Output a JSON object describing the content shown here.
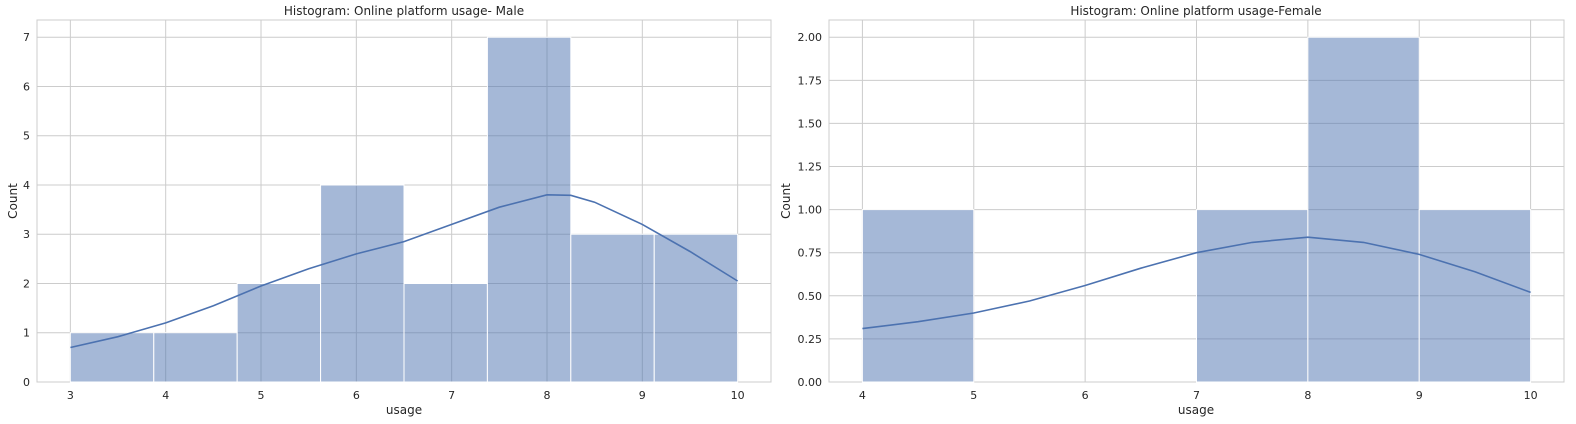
{
  "chart_data": [
    {
      "type": "bar",
      "title": "Histogram: Online platform usage- Male",
      "xlabel": "usage",
      "ylabel": "Count",
      "xlim": [
        2.65,
        10.35
      ],
      "ylim": [
        0,
        7.35
      ],
      "xticks": [
        3,
        4,
        5,
        6,
        7,
        8,
        9,
        10
      ],
      "yticks": [
        0,
        1,
        2,
        3,
        4,
        5,
        6,
        7
      ],
      "ytick_decimals": 0,
      "grid": true,
      "bins": [
        {
          "x0": 3.0,
          "x1": 3.875,
          "count": 1
        },
        {
          "x0": 3.875,
          "x1": 4.75,
          "count": 1
        },
        {
          "x0": 4.75,
          "x1": 5.625,
          "count": 2
        },
        {
          "x0": 5.625,
          "x1": 6.5,
          "count": 4
        },
        {
          "x0": 6.5,
          "x1": 7.375,
          "count": 2
        },
        {
          "x0": 7.375,
          "x1": 8.25,
          "count": 7
        },
        {
          "x0": 8.25,
          "x1": 9.125,
          "count": 3
        },
        {
          "x0": 9.125,
          "x1": 10.0,
          "count": 3
        }
      ],
      "kde": [
        [
          3.0,
          0.7
        ],
        [
          3.5,
          0.92
        ],
        [
          4.0,
          1.2
        ],
        [
          4.5,
          1.55
        ],
        [
          5.0,
          1.95
        ],
        [
          5.5,
          2.3
        ],
        [
          6.0,
          2.6
        ],
        [
          6.5,
          2.85
        ],
        [
          7.0,
          3.2
        ],
        [
          7.5,
          3.55
        ],
        [
          8.0,
          3.8
        ],
        [
          8.25,
          3.79
        ],
        [
          8.5,
          3.65
        ],
        [
          9.0,
          3.2
        ],
        [
          9.5,
          2.65
        ],
        [
          10.0,
          2.05
        ]
      ],
      "color": "#4c72b0"
    },
    {
      "type": "bar",
      "title": "Histogram: Online platform usage-Female",
      "xlabel": "usage",
      "ylabel": "Count",
      "xlim": [
        3.7,
        10.3
      ],
      "ylim": [
        0,
        2.1
      ],
      "xticks": [
        4,
        5,
        6,
        7,
        8,
        9,
        10
      ],
      "yticks": [
        0,
        0.25,
        0.5,
        0.75,
        1.0,
        1.25,
        1.5,
        1.75,
        2.0
      ],
      "ytick_decimals": 2,
      "grid": true,
      "bins": [
        {
          "x0": 4,
          "x1": 5,
          "count": 1
        },
        {
          "x0": 5,
          "x1": 6,
          "count": 0
        },
        {
          "x0": 6,
          "x1": 7,
          "count": 0
        },
        {
          "x0": 7,
          "x1": 8,
          "count": 1
        },
        {
          "x0": 8,
          "x1": 9,
          "count": 2
        },
        {
          "x0": 9,
          "x1": 10,
          "count": 1
        }
      ],
      "kde": [
        [
          4.0,
          0.31
        ],
        [
          4.5,
          0.35
        ],
        [
          5.0,
          0.4
        ],
        [
          5.5,
          0.47
        ],
        [
          6.0,
          0.56
        ],
        [
          6.5,
          0.66
        ],
        [
          7.0,
          0.75
        ],
        [
          7.5,
          0.81
        ],
        [
          8.0,
          0.84
        ],
        [
          8.5,
          0.81
        ],
        [
          9.0,
          0.74
        ],
        [
          9.5,
          0.64
        ],
        [
          10.0,
          0.52
        ]
      ],
      "color": "#4c72b0"
    }
  ]
}
